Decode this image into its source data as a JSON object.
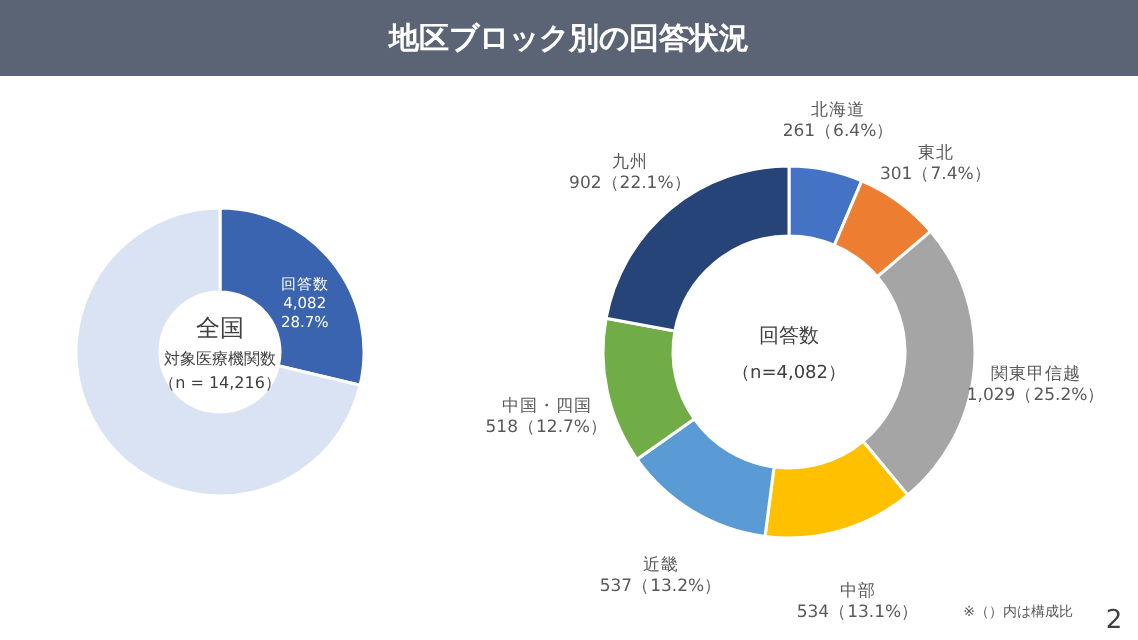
{
  "chart_data": [
    {
      "type": "donut",
      "title": "地区ブロック別の回答状況",
      "categories": [
        "回答数",
        null
      ],
      "values": [
        28.7,
        71.3
      ],
      "colors": [
        "#3a64b0",
        "#dae3f3"
      ],
      "value_labels": [
        "4,082\n28.7%",
        null
      ],
      "annotations": [
        "全国",
        "対象医療機関数",
        "（n = 14,216）"
      ]
    },
    {
      "type": "donut",
      "categories": [
        "北海道",
        "東北",
        "関東甲信越",
        "中部",
        "近畿",
        "中国・四国",
        "九州"
      ],
      "values": [
        261,
        301,
        1029,
        534,
        537,
        518,
        902
      ],
      "colors": [
        "#4472c4",
        "#ed7d31",
        "#a5a5a5",
        "#ffc000",
        "#5b9bd5",
        "#70ad47",
        "#264478"
      ],
      "value_labels": [
        "261（6.4%）",
        "301（7.4%）",
        "1,029（25.2%）",
        "534（13.1%）",
        "537（13.2%）",
        "518（12.7%）",
        "902（22.1%）"
      ],
      "annotations": [
        "回答数",
        "（n=4,082）",
        "※（）内は構成比",
        "2"
      ]
    }
  ]
}
